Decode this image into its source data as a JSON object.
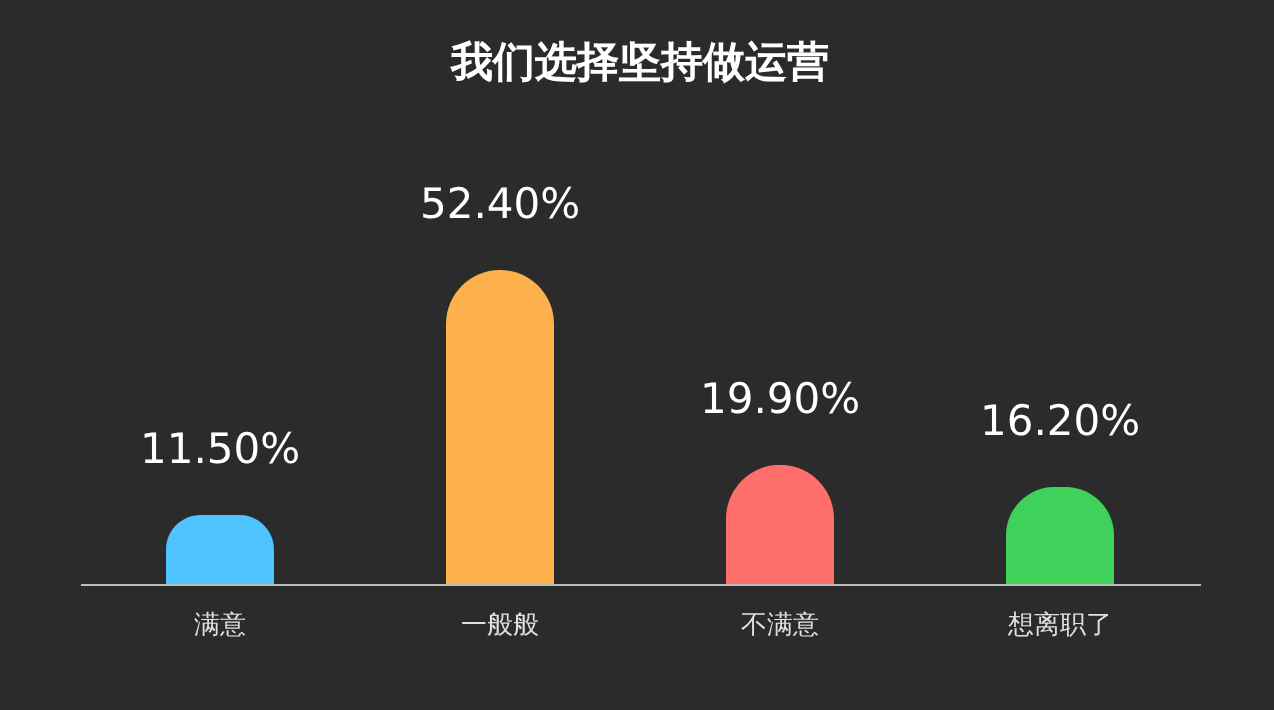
{
  "chart_data": {
    "type": "bar",
    "title": "我们选择坚持做运营",
    "categories": [
      "满意",
      "一般般",
      "不满意",
      "想离职了"
    ],
    "values": [
      11.5,
      52.4,
      19.9,
      16.2
    ],
    "colors": [
      "#4fc3fe",
      "#fdb14d",
      "#fe6e6a",
      "#3ed25a"
    ],
    "value_labels": [
      "11.50%",
      "52.40%",
      "19.90%",
      "16.20%"
    ]
  }
}
